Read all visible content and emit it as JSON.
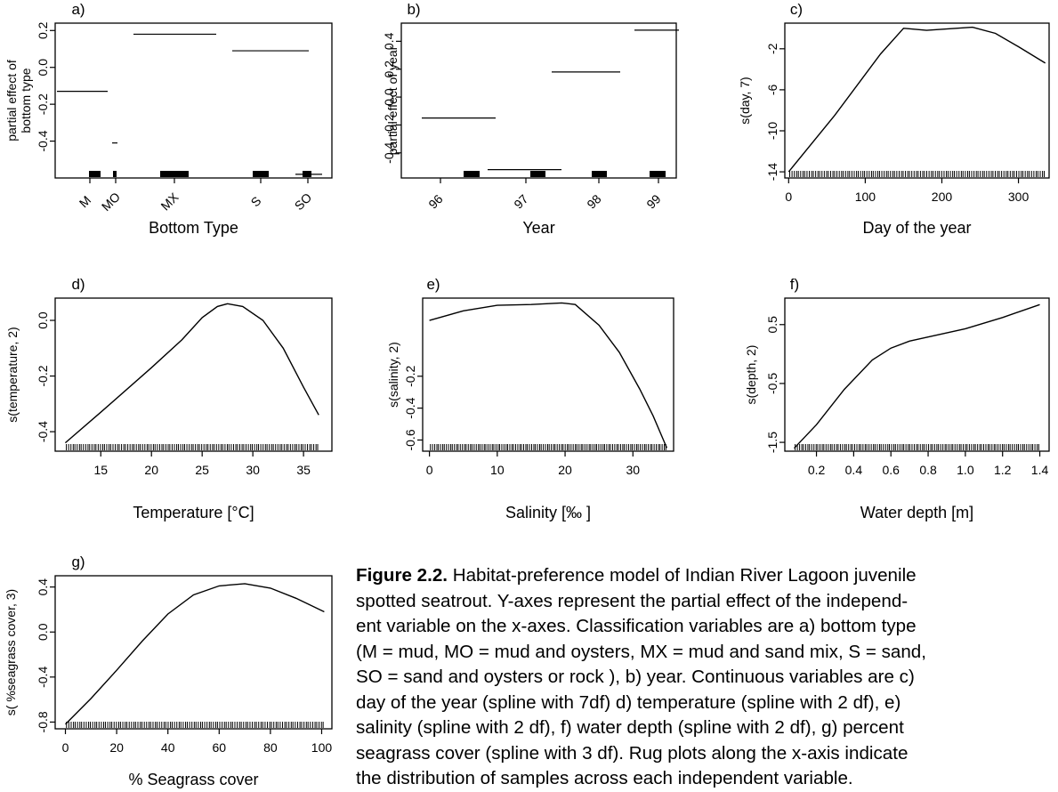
{
  "chart_data": [
    {
      "id": "a",
      "panel_label": "a)",
      "type": "bar",
      "xlabel": "Bottom Type",
      "ylabel": [
        "partial effect of",
        "bottom type"
      ],
      "categories": [
        "M",
        "MO",
        "MX",
        "S",
        "SO"
      ],
      "values": [
        -0.13,
        -0.41,
        0.18,
        0.09,
        -0.58
      ],
      "yticks": [
        "-0.4",
        "-0.2",
        "0.0",
        "0.2"
      ],
      "ylim": [
        -0.6,
        0.24
      ],
      "rug_note": "bars along x-axis show sample distribution"
    },
    {
      "id": "b",
      "panel_label": "b)",
      "type": "bar",
      "xlabel": "Year",
      "ylabel": [
        "partial effect of year"
      ],
      "categories": [
        "96",
        "97",
        "98",
        "99"
      ],
      "values": [
        -0.15,
        -0.52,
        0.18,
        0.48
      ],
      "yticks": [
        "-0.4",
        "-0.2",
        "0.0",
        "0.2",
        "0.4"
      ],
      "ylim": [
        -0.58,
        0.53
      ]
    },
    {
      "id": "c",
      "panel_label": "c)",
      "type": "line",
      "xlabel": "Day of the year",
      "ylabel": [
        "s(day, 7)"
      ],
      "x": [
        0,
        60,
        120,
        150,
        180,
        240,
        270,
        300,
        335
      ],
      "y": [
        -14,
        -8.5,
        -2.5,
        0,
        -0.2,
        0.1,
        -0.5,
        -1.8,
        -3.4
      ],
      "xticks": [
        "0",
        "100",
        "200",
        "300"
      ],
      "yticks": [
        "-14",
        "-10",
        "-6",
        "-2"
      ],
      "xlim": [
        -5,
        340
      ],
      "ylim": [
        -14.6,
        0.5
      ]
    },
    {
      "id": "d",
      "panel_label": "d)",
      "type": "line",
      "xlabel": "Temperature [°C]",
      "ylabel": [
        "s(temperature, 2)"
      ],
      "x": [
        11.5,
        15,
        20,
        23,
        25,
        26.5,
        27.5,
        29,
        31,
        33,
        35,
        36.5
      ],
      "y": [
        -0.44,
        -0.33,
        -0.17,
        -0.07,
        0.01,
        0.05,
        0.06,
        0.05,
        0.0,
        -0.1,
        -0.24,
        -0.34
      ],
      "xticks": [
        "15",
        "20",
        "25",
        "30",
        "35"
      ],
      "yticks": [
        "-0.4",
        "-0.2",
        "0.0"
      ],
      "xlim": [
        10.5,
        37.8
      ],
      "ylim": [
        -0.47,
        0.08
      ]
    },
    {
      "id": "e",
      "panel_label": "e)",
      "type": "line",
      "xlabel": "Salinity [‰ ]",
      "ylabel": [
        "s(salinity, 2)"
      ],
      "x": [
        0,
        5,
        10,
        15,
        19.5,
        21.5,
        25,
        28,
        31,
        33,
        35
      ],
      "y": [
        0.15,
        0.21,
        0.245,
        0.25,
        0.26,
        0.25,
        0.12,
        -0.05,
        -0.28,
        -0.45,
        -0.65
      ],
      "xticks": [
        "0",
        "10",
        "20",
        "30"
      ],
      "yticks": [
        "-0.6",
        "-0.4",
        "-0.2"
      ],
      "xlim": [
        -1,
        36
      ],
      "ylim": [
        -0.67,
        0.29
      ]
    },
    {
      "id": "f",
      "panel_label": "f)",
      "type": "line",
      "xlabel": "Water depth [m]",
      "ylabel": [
        "s(depth, 2)"
      ],
      "x": [
        0.08,
        0.2,
        0.35,
        0.5,
        0.6,
        0.7,
        0.8,
        1.0,
        1.2,
        1.4
      ],
      "y": [
        -1.6,
        -1.2,
        -0.6,
        -0.1,
        0.1,
        0.22,
        0.29,
        0.43,
        0.62,
        0.84
      ],
      "xticks": [
        "0.2",
        "0.4",
        "0.6",
        "0.8",
        "1.0",
        "1.2",
        "1.4"
      ],
      "yticks": [
        "-1.5",
        "-0.5",
        "0.5"
      ],
      "xlim": [
        0.03,
        1.45
      ],
      "ylim": [
        -1.65,
        0.95
      ]
    },
    {
      "id": "g",
      "panel_label": "g)",
      "type": "line",
      "xlabel": "% Seagrass cover",
      "ylabel": [
        "s( %seagrass cover, 3)"
      ],
      "x": [
        0,
        10,
        20,
        30,
        40,
        50,
        60,
        70,
        80,
        90,
        101
      ],
      "y": [
        -0.82,
        -0.59,
        -0.34,
        -0.08,
        0.16,
        0.33,
        0.41,
        0.43,
        0.39,
        0.3,
        0.18
      ],
      "xticks": [
        "0",
        "20",
        "40",
        "60",
        "80",
        "100"
      ],
      "yticks": [
        "-0.8",
        "-0.4",
        "0.0",
        "0.4"
      ],
      "xlim": [
        -4,
        104
      ],
      "ylim": [
        -0.86,
        0.5
      ]
    }
  ],
  "caption": {
    "label": "Figure 2.2.",
    "lines": [
      " Habitat-preference model of Indian River Lagoon juvenile",
      "spotted seatrout. Y-axes represent the partial effect of the independ-",
      "ent variable on the x-axes. Classification variables are a) bottom type",
      "(M = mud, MO = mud and oysters, MX = mud and sand mix, S = sand,",
      "SO = sand and oysters or rock ), b) year. Continuous variables are c)",
      "day of the year (spline with 7df) d) temperature (spline with 2 df), e)",
      "salinity (spline with 2 df), f) water depth (spline with 2 df), g) percent",
      "seagrass cover (spline with 3 df). Rug plots along the x-axis indicate",
      "the distribution of samples across each independent variable."
    ]
  }
}
